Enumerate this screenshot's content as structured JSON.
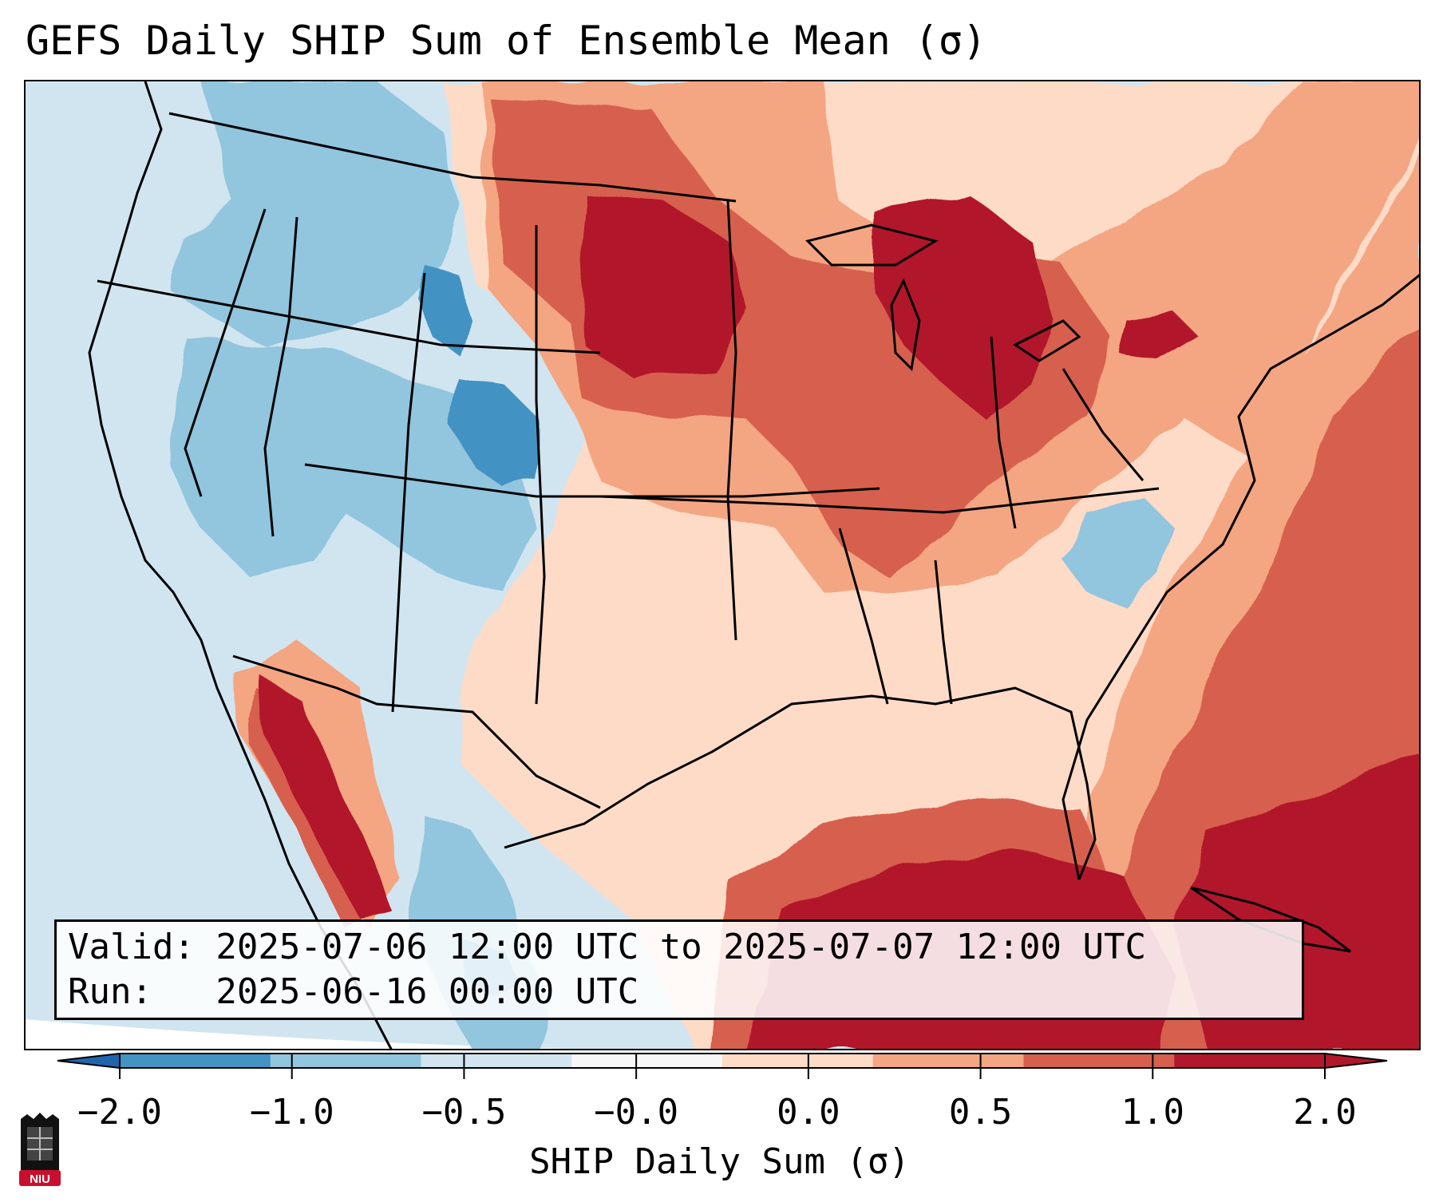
{
  "title": "GEFS Daily SHIP Sum of Ensemble Mean (σ)",
  "valid_line": "Valid: 2025-07-06 12:00 UTC to 2025-07-07 12:00 UTC",
  "run_line": "Run:   2025-06-16 00:00 UTC",
  "colorbar": {
    "label": "SHIP Daily Sum (σ)",
    "ticks": [
      "−2.0",
      "−1.0",
      "−0.5",
      "−0.0",
      "0.0",
      "0.5",
      "1.0",
      "2.0"
    ],
    "bin_colors": [
      "#4393c3",
      "#92c5de",
      "#d1e5f0",
      "#f7f7f7",
      "#fddbc7",
      "#f4a582",
      "#d6604d",
      "#b2182b"
    ],
    "extend_low_color": "#2166ac",
    "extend_high_color": "#b2182b"
  },
  "logo": {
    "text": "NIU",
    "color": "#c8102e"
  },
  "legend_colors": {
    "vneg": "#4393c3",
    "neg": "#92c5de",
    "lneg": "#d1e5f0",
    "lpos": "#fddbc7",
    "pos": "#f4a582",
    "mpos": "#d6604d",
    "vpos": "#b2182b"
  }
}
